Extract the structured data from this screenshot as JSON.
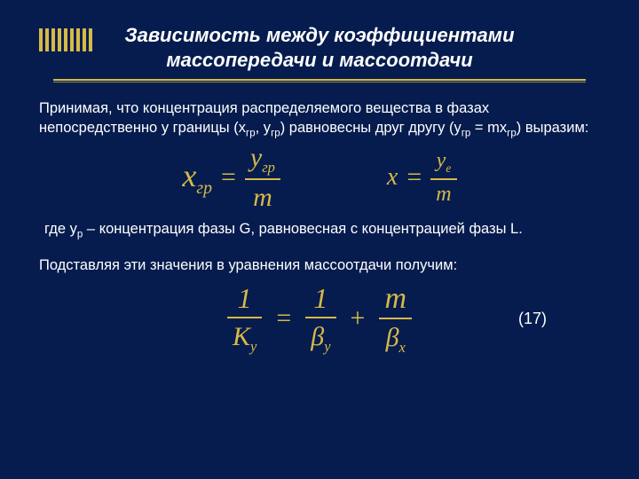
{
  "colors": {
    "background": "#061c4e",
    "text": "#ffffff",
    "accent": "#d6b948"
  },
  "title": {
    "line1": "Зависимость между коэффициентами",
    "line2": "массопередачи и массоотдачи"
  },
  "para1": {
    "pre": "Принимая, что концентрация распределяемого вещества в фазах непосредственно у границы (x",
    "s1": "гр",
    "mid1": ", y",
    "s2": "гр",
    "mid2": ") равновесны друг другу (y",
    "s3": "гр",
    "mid3": " = mx",
    "s4": "гр",
    "post": ") выразим:"
  },
  "eq1": {
    "lhs": "x",
    "lhs_sub": "гр",
    "num": "y",
    "num_sub": "гр",
    "den": "m"
  },
  "eq2": {
    "lhs": "x",
    "num": "y",
    "num_sub": "e",
    "den": "m"
  },
  "where": {
    "pre": "где y",
    "sub": "p",
    "post": "  – концентрация фазы G, равновесная с концентрацией фазы L."
  },
  "para2": "Подставляя эти значения в уравнения массоотдачи получим:",
  "eq3": {
    "t1_num": "1",
    "t1_den": "K",
    "t1_den_sub": "y",
    "t2_num": "1",
    "t2_den": "β",
    "t2_den_sub": "y",
    "t3_num": "m",
    "t3_den": "β",
    "t3_den_sub": "x",
    "eq": "=",
    "plus": "+"
  },
  "eqnum": "(17)"
}
